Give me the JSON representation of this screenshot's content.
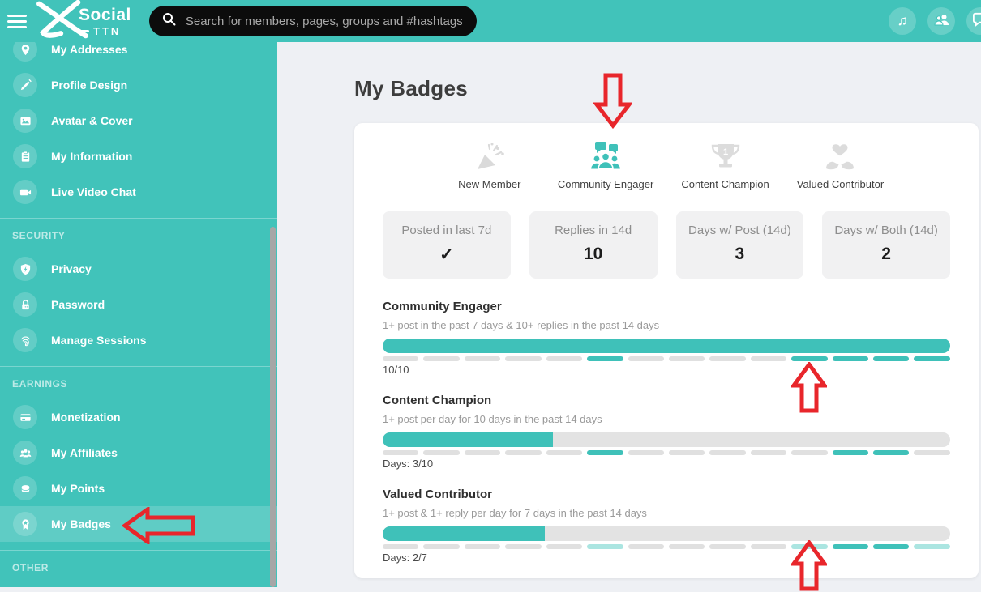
{
  "header": {
    "brand": "Social",
    "brand_sub": "TTN",
    "search_placeholder": "Search for members, pages, groups and #hashtags"
  },
  "sidebar": {
    "sections": [
      {
        "items": [
          {
            "label": "My Addresses",
            "icon": "location-pin"
          },
          {
            "label": "Profile Design",
            "icon": "paint-brush"
          },
          {
            "label": "Avatar & Cover",
            "icon": "image"
          },
          {
            "label": "My Information",
            "icon": "clipboard"
          },
          {
            "label": "Live Video Chat",
            "icon": "video-camera"
          }
        ]
      },
      {
        "header": "SECURITY",
        "items": [
          {
            "label": "Privacy",
            "icon": "shield"
          },
          {
            "label": "Password",
            "icon": "padlock"
          },
          {
            "label": "Manage Sessions",
            "icon": "fingerprint"
          }
        ]
      },
      {
        "header": "EARNINGS",
        "items": [
          {
            "label": "Monetization",
            "icon": "credit-card"
          },
          {
            "label": "My Affiliates",
            "icon": "people-group"
          },
          {
            "label": "My Points",
            "icon": "coins"
          },
          {
            "label": "My Badges",
            "icon": "ribbon-badge",
            "active": true
          }
        ]
      },
      {
        "header": "OTHER",
        "items": []
      }
    ]
  },
  "main": {
    "title": "My Badges",
    "badges": [
      {
        "label": "New Member",
        "icon": "party-popper",
        "earned": false
      },
      {
        "label": "Community Engager",
        "icon": "community-group",
        "earned": true
      },
      {
        "label": "Content Champion",
        "icon": "trophy",
        "earned": false
      },
      {
        "label": "Valued Contributor",
        "icon": "heart-hands",
        "earned": false
      }
    ],
    "stats": [
      {
        "label": "Posted in last 7d",
        "value": "✓"
      },
      {
        "label": "Replies in 14d",
        "value": "10"
      },
      {
        "label": "Days w/ Post (14d)",
        "value": "3"
      },
      {
        "label": "Days w/ Both (14d)",
        "value": "2"
      }
    ],
    "progress_sections": [
      {
        "title": "Community Engager",
        "subtitle": "1+ post in the past 7 days & 10+ replies in the past 14 days",
        "progress_percent": 100,
        "footer": "10/10",
        "day_segments": [
          "off",
          "off",
          "off",
          "off",
          "off",
          "on",
          "off",
          "off",
          "off",
          "off",
          "on",
          "on",
          "on",
          "on"
        ]
      },
      {
        "title": "Content Champion",
        "subtitle": "1+ post per day for 10 days in the past 14 days",
        "progress_percent": 30,
        "footer": "Days: 3/10",
        "day_segments": [
          "off",
          "off",
          "off",
          "off",
          "off",
          "on",
          "off",
          "off",
          "off",
          "off",
          "off",
          "on",
          "on",
          "off"
        ]
      },
      {
        "title": "Valued Contributor",
        "subtitle": "1+ post & 1+ reply per day for 7 days in the past 14 days",
        "progress_percent": 28.6,
        "footer": "Days: 2/7",
        "day_segments": [
          "off",
          "off",
          "off",
          "off",
          "off",
          "half",
          "off",
          "off",
          "off",
          "off",
          "half",
          "on",
          "on",
          "half"
        ]
      }
    ]
  },
  "annotations": {
    "arrows": [
      {
        "direction": "left",
        "points_to": "My Badges sidebar item"
      },
      {
        "direction": "down",
        "points_to": "Community Engager badge icon"
      },
      {
        "direction": "up",
        "points_to": "Community Engager day segment 11"
      },
      {
        "direction": "up",
        "points_to": "Valued Contributor day segment 11"
      }
    ],
    "color": "#e8262b"
  },
  "colors": {
    "teal": "#41c3ba",
    "teal_light_segment": "#abe5e1",
    "segment_off": "#e0e0e0",
    "search_bar": "#0c0c0c",
    "page_background": "#eef0f4",
    "card_background": "#ffffff"
  }
}
